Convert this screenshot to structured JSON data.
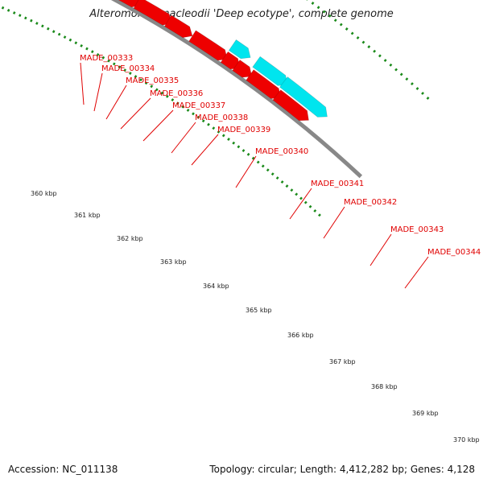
{
  "title": "Alteromonas macleodii 'Deep ecotype', complete genome",
  "footer": {
    "accession": "Accession: NC_011138",
    "topology": "Topology: circular; Length: 4,412,282 bp; Genes: 4,128"
  },
  "colors": {
    "gene_red": "#ee0000",
    "gene_cyan": "#00e5ee",
    "gene_blue": "#0000dd",
    "backbone": "#888888",
    "tick_green": "#1a8a1a",
    "label_red": "#e00000"
  },
  "gene_labels": [
    "MADE_00333",
    "MADE_00334",
    "MADE_00335",
    "MADE_00336",
    "MADE_00337",
    "MADE_00338",
    "MADE_00339",
    "MADE_00340",
    "MADE_00341",
    "MADE_00342",
    "MADE_00343",
    "MADE_00344"
  ],
  "scale_labels": [
    "360 kbp",
    "361 kbp",
    "362 kbp",
    "363 kbp",
    "364 kbp",
    "365 kbp",
    "366 kbp",
    "367 kbp",
    "368 kbp",
    "369 kbp",
    "370 kbp"
  ]
}
